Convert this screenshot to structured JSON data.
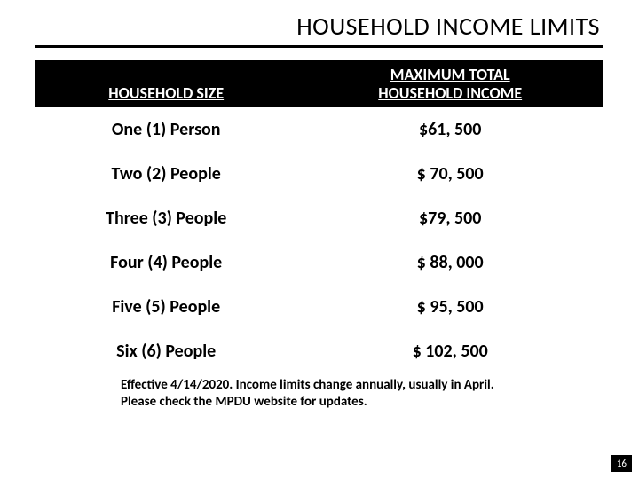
{
  "title": "HOUSEHOLD INCOME LIMITS",
  "table": {
    "header_size": "HOUSEHOLD SIZE",
    "header_income_l1": "MAXIMUM TOTAL",
    "header_income_l2": "HOUSEHOLD INCOME",
    "rows": [
      {
        "size": "One (1) Person",
        "income": "$61, 500"
      },
      {
        "size": "Two (2) People",
        "income": "$ 70, 500"
      },
      {
        "size": "Three (3) People",
        "income": "$79, 500"
      },
      {
        "size": "Four (4) People",
        "income": "$ 88, 000"
      },
      {
        "size": "Five (5) People",
        "income": "$ 95, 500"
      },
      {
        "size": "Six (6) People",
        "income": "$ 102, 500"
      }
    ]
  },
  "footnote": "Effective 4/14/2020.  Income limits change annually, usually in April. Please check the MPDU website for updates.",
  "page_number": "16",
  "colors": {
    "header_bg": "#000000",
    "header_fg": "#ffffff",
    "text": "#000000",
    "rule": "#000000"
  }
}
